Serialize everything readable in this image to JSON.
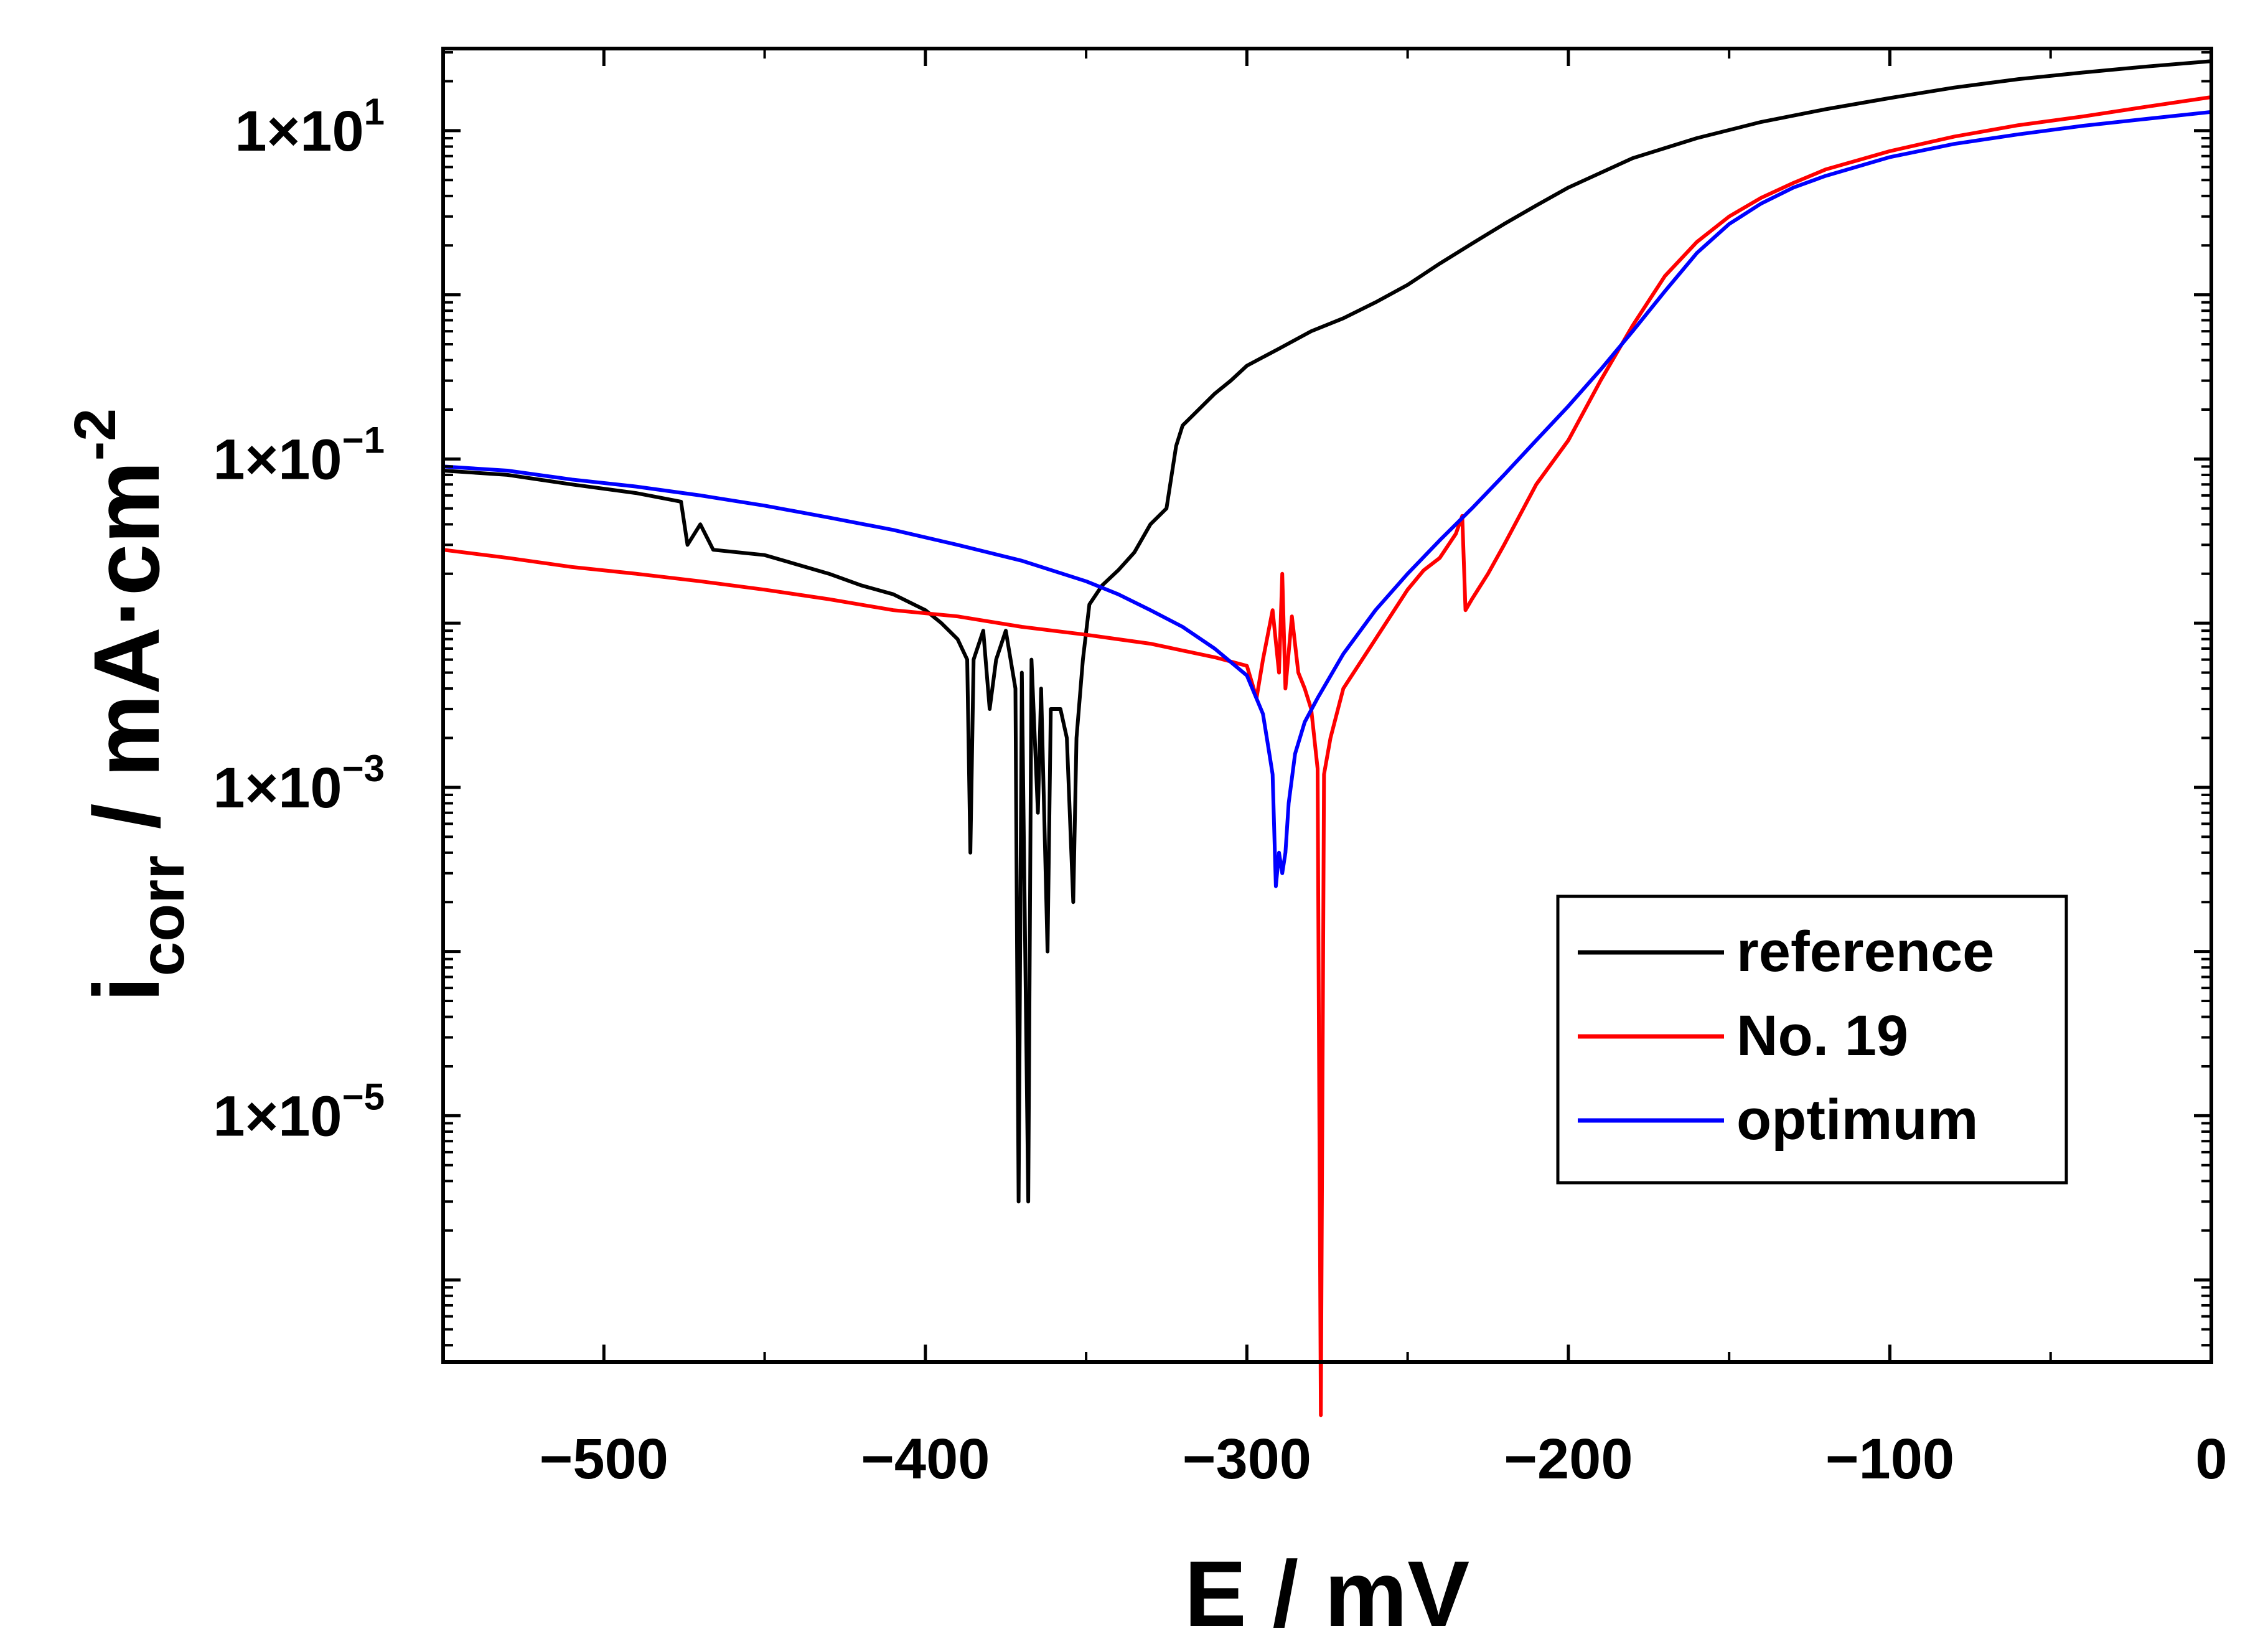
{
  "chart_data": {
    "type": "line",
    "title": "",
    "xlabel": "E / mV",
    "ylabel_main": "i",
    "ylabel_sub": "corr",
    "ylabel_rest": " / mA·cm",
    "ylabel_sup": "-2",
    "xlim": [
      -550,
      0
    ],
    "ylim_log10": [
      -6.5,
      1.5
    ],
    "yscale": "log",
    "x_ticks": [
      -500,
      -400,
      -300,
      -200,
      -100,
      0
    ],
    "x_tick_labels": [
      "−500",
      "−400",
      "−300",
      "−200",
      "−100",
      "0"
    ],
    "y_ticks": [
      {
        "exp": 1,
        "mantissa": "1×10",
        "sup": "1"
      },
      {
        "exp": -1,
        "mantissa": "1×10",
        "sup": "−1"
      },
      {
        "exp": -3,
        "mantissa": "1×10",
        "sup": "−3"
      },
      {
        "exp": -5,
        "mantissa": "1×10",
        "sup": "−5"
      }
    ],
    "legend_position": "bottom-right",
    "series": [
      {
        "name": "reference",
        "color": "#000000",
        "points": [
          [
            -550,
            0.085
          ],
          [
            -530,
            0.08
          ],
          [
            -510,
            0.07
          ],
          [
            -490,
            0.062
          ],
          [
            -476,
            0.055
          ],
          [
            -474,
            0.03
          ],
          [
            -470,
            0.04
          ],
          [
            -466,
            0.028
          ],
          [
            -450,
            0.026
          ],
          [
            -430,
            0.02
          ],
          [
            -420,
            0.017
          ],
          [
            -410,
            0.015
          ],
          [
            -400,
            0.012
          ],
          [
            -395,
            0.01
          ],
          [
            -390,
            0.008
          ],
          [
            -387,
            0.006
          ],
          [
            -386,
            0.0004
          ],
          [
            -385,
            0.006
          ],
          [
            -382,
            0.009
          ],
          [
            -380,
            0.003
          ],
          [
            -378,
            0.006
          ],
          [
            -375,
            0.009
          ],
          [
            -372,
            0.004
          ],
          [
            -371,
            3e-06
          ],
          [
            -370,
            0.005
          ],
          [
            -368,
            3e-06
          ],
          [
            -367,
            0.006
          ],
          [
            -365,
            0.0007
          ],
          [
            -364,
            0.004
          ],
          [
            -362,
            0.0001
          ],
          [
            -361,
            0.003
          ],
          [
            -358,
            0.003
          ],
          [
            -356,
            0.002
          ],
          [
            -354,
            0.0002
          ],
          [
            -353,
            0.002
          ],
          [
            -351,
            0.006
          ],
          [
            -349,
            0.013
          ],
          [
            -345,
            0.017
          ],
          [
            -340,
            0.021
          ],
          [
            -335,
            0.027
          ],
          [
            -330,
            0.04
          ],
          [
            -325,
            0.05
          ],
          [
            -323,
            0.09
          ],
          [
            -322,
            0.12
          ],
          [
            -320,
            0.16
          ],
          [
            -315,
            0.2
          ],
          [
            -310,
            0.25
          ],
          [
            -305,
            0.3
          ],
          [
            -300,
            0.37
          ],
          [
            -290,
            0.47
          ],
          [
            -280,
            0.6
          ],
          [
            -270,
            0.72
          ],
          [
            -260,
            0.9
          ],
          [
            -250,
            1.15
          ],
          [
            -240,
            1.55
          ],
          [
            -230,
            2.05
          ],
          [
            -220,
            2.7
          ],
          [
            -210,
            3.5
          ],
          [
            -200,
            4.5
          ],
          [
            -180,
            6.8
          ],
          [
            -160,
            9.0
          ],
          [
            -140,
            11.3
          ],
          [
            -120,
            13.5
          ],
          [
            -100,
            15.8
          ],
          [
            -80,
            18.3
          ],
          [
            -60,
            20.6
          ],
          [
            -40,
            22.6
          ],
          [
            -20,
            24.6
          ],
          [
            0,
            26.5
          ]
        ]
      },
      {
        "name": "No. 19",
        "color": "#ff0000",
        "points": [
          [
            -550,
            0.028
          ],
          [
            -530,
            0.025
          ],
          [
            -510,
            0.022
          ],
          [
            -490,
            0.02
          ],
          [
            -470,
            0.018
          ],
          [
            -450,
            0.016
          ],
          [
            -430,
            0.014
          ],
          [
            -410,
            0.012
          ],
          [
            -390,
            0.011
          ],
          [
            -370,
            0.0095
          ],
          [
            -350,
            0.0085
          ],
          [
            -330,
            0.0075
          ],
          [
            -310,
            0.0062
          ],
          [
            -300,
            0.0055
          ],
          [
            -297,
            0.0035
          ],
          [
            -295,
            0.006
          ],
          [
            -292,
            0.012
          ],
          [
            -290,
            0.005
          ],
          [
            -289,
            0.02
          ],
          [
            -288,
            0.004
          ],
          [
            -286,
            0.011
          ],
          [
            -284,
            0.005
          ],
          [
            -282,
            0.004
          ],
          [
            -280,
            0.003
          ],
          [
            -278,
            0.0013
          ],
          [
            -277,
            1.5e-07
          ],
          [
            -276,
            0.0012
          ],
          [
            -274,
            0.002
          ],
          [
            -270,
            0.004
          ],
          [
            -260,
            0.008
          ],
          [
            -250,
            0.016
          ],
          [
            -245,
            0.021
          ],
          [
            -240,
            0.025
          ],
          [
            -235,
            0.035
          ],
          [
            -233,
            0.045
          ],
          [
            -232,
            0.012
          ],
          [
            -230,
            0.014
          ],
          [
            -225,
            0.02
          ],
          [
            -220,
            0.03
          ],
          [
            -210,
            0.07
          ],
          [
            -200,
            0.13
          ],
          [
            -190,
            0.3
          ],
          [
            -180,
            0.65
          ],
          [
            -170,
            1.3
          ],
          [
            -160,
            2.1
          ],
          [
            -150,
            3.0
          ],
          [
            -140,
            3.9
          ],
          [
            -130,
            4.8
          ],
          [
            -120,
            5.8
          ],
          [
            -100,
            7.5
          ],
          [
            -80,
            9.2
          ],
          [
            -60,
            10.8
          ],
          [
            -40,
            12.2
          ],
          [
            -20,
            14.0
          ],
          [
            0,
            16.0
          ]
        ]
      },
      {
        "name": "optimum",
        "color": "#0000ff",
        "points": [
          [
            -550,
            0.09
          ],
          [
            -530,
            0.085
          ],
          [
            -510,
            0.075
          ],
          [
            -490,
            0.068
          ],
          [
            -470,
            0.06
          ],
          [
            -450,
            0.052
          ],
          [
            -430,
            0.044
          ],
          [
            -410,
            0.037
          ],
          [
            -390,
            0.03
          ],
          [
            -370,
            0.024
          ],
          [
            -350,
            0.018
          ],
          [
            -340,
            0.015
          ],
          [
            -330,
            0.012
          ],
          [
            -320,
            0.0095
          ],
          [
            -310,
            0.007
          ],
          [
            -300,
            0.0048
          ],
          [
            -295,
            0.0028
          ],
          [
            -293,
            0.0016
          ],
          [
            -292,
            0.0012
          ],
          [
            -291,
            0.00025
          ],
          [
            -290,
            0.0004
          ],
          [
            -289,
            0.0003
          ],
          [
            -288,
            0.0004
          ],
          [
            -287,
            0.0008
          ],
          [
            -285,
            0.0016
          ],
          [
            -282,
            0.0025
          ],
          [
            -278,
            0.0035
          ],
          [
            -270,
            0.0065
          ],
          [
            -260,
            0.012
          ],
          [
            -250,
            0.02
          ],
          [
            -240,
            0.032
          ],
          [
            -230,
            0.05
          ],
          [
            -220,
            0.08
          ],
          [
            -210,
            0.13
          ],
          [
            -200,
            0.21
          ],
          [
            -190,
            0.35
          ],
          [
            -180,
            0.6
          ],
          [
            -170,
            1.05
          ],
          [
            -160,
            1.8
          ],
          [
            -150,
            2.7
          ],
          [
            -140,
            3.6
          ],
          [
            -130,
            4.5
          ],
          [
            -120,
            5.3
          ],
          [
            -100,
            6.9
          ],
          [
            -80,
            8.3
          ],
          [
            -60,
            9.5
          ],
          [
            -40,
            10.7
          ],
          [
            -20,
            11.8
          ],
          [
            0,
            13.0
          ]
        ]
      }
    ]
  }
}
